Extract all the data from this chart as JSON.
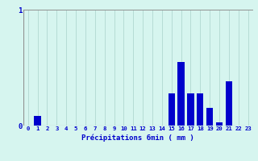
{
  "title": "",
  "xlabel": "Précipitations 6min ( mm )",
  "categories": [
    0,
    1,
    2,
    3,
    4,
    5,
    6,
    7,
    8,
    9,
    10,
    11,
    12,
    13,
    14,
    15,
    16,
    17,
    18,
    19,
    20,
    21,
    22,
    23
  ],
  "values": [
    0,
    0.08,
    0,
    0,
    0,
    0,
    0,
    0,
    0,
    0,
    0,
    0,
    0,
    0,
    0,
    0.28,
    0.55,
    0.28,
    0.28,
    0.15,
    0.03,
    0.38,
    0,
    0
  ],
  "bar_color": "#0000cc",
  "bg_color": "#d6f5ef",
  "grid_color": "#b0d8d0",
  "axis_color": "#909090",
  "text_color": "#0000cc",
  "ylim": [
    0,
    1.0
  ],
  "yticks": [
    0,
    1
  ],
  "xlim": [
    -0.5,
    23.5
  ]
}
